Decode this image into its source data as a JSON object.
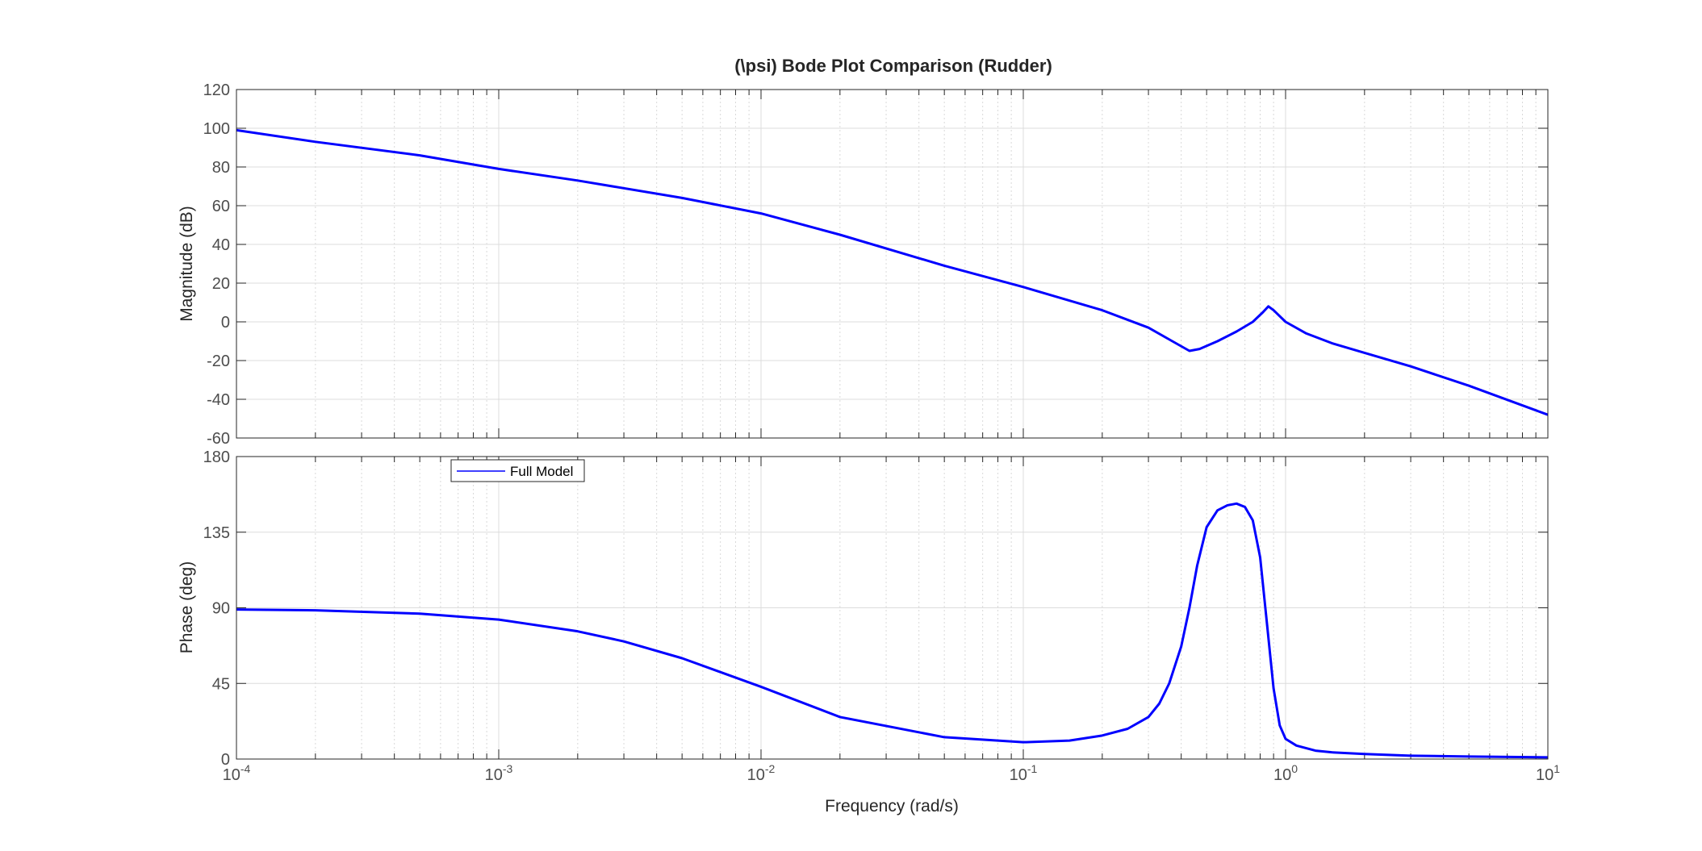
{
  "chart_data": {
    "type": "line",
    "title": "(\\psi) Bode Plot Comparison (Rudder)",
    "xlabel": "Frequency  (rad/s)",
    "xscale": "log",
    "xlim": [
      0.0001,
      10
    ],
    "x_ticks": [
      {
        "base": "10",
        "exp": "-4",
        "value": 0.0001
      },
      {
        "base": "10",
        "exp": "-3",
        "value": 0.001
      },
      {
        "base": "10",
        "exp": "-2",
        "value": 0.01
      },
      {
        "base": "10",
        "exp": "-1",
        "value": 0.1
      },
      {
        "base": "10",
        "exp": "0",
        "value": 1
      },
      {
        "base": "10",
        "exp": "1",
        "value": 10
      }
    ],
    "grid": true,
    "legend": {
      "placement": "top-left (phase panel)",
      "entries": [
        "Full Model"
      ]
    },
    "series_color": "#0000ff",
    "panels": [
      {
        "name": "magnitude",
        "ylabel": "Magnitude (dB)",
        "ylim": [
          -60,
          120
        ],
        "yticks": [
          120,
          100,
          80,
          60,
          40,
          20,
          0,
          -20,
          -40,
          -60
        ],
        "series": [
          {
            "name": "Full Model",
            "x": [
              0.0001,
              0.0002,
              0.0005,
              0.001,
              0.002,
              0.005,
              0.01,
              0.02,
              0.05,
              0.1,
              0.2,
              0.3,
              0.37,
              0.43,
              0.47,
              0.55,
              0.65,
              0.75,
              0.82,
              0.86,
              0.9,
              1.0,
              1.2,
              1.5,
              2,
              3,
              5,
              10
            ],
            "y": [
              99,
              93,
              86,
              79,
              73,
              64,
              56,
              45,
              29,
              18,
              6,
              -3,
              -10,
              -15,
              -14,
              -10,
              -5,
              0,
              5,
              8,
              6,
              0,
              -6,
              -11,
              -16,
              -23,
              -33,
              -48
            ]
          }
        ]
      },
      {
        "name": "phase",
        "ylabel": "Phase (deg)",
        "ylim": [
          0,
          180
        ],
        "yticks": [
          180,
          135,
          90,
          45,
          0
        ],
        "series": [
          {
            "name": "Full Model",
            "x": [
              0.0001,
              0.0002,
              0.0005,
              0.001,
              0.002,
              0.003,
              0.005,
              0.01,
              0.02,
              0.05,
              0.1,
              0.15,
              0.2,
              0.25,
              0.3,
              0.33,
              0.36,
              0.4,
              0.43,
              0.46,
              0.5,
              0.55,
              0.6,
              0.65,
              0.7,
              0.75,
              0.8,
              0.85,
              0.9,
              0.95,
              1.0,
              1.1,
              1.3,
              1.5,
              2,
              3,
              5,
              10
            ],
            "y": [
              89,
              88.5,
              86.5,
              83,
              76,
              70,
              60,
              43,
              25,
              13,
              10,
              11,
              14,
              18,
              25,
              33,
              45,
              67,
              90,
              115,
              138,
              148,
              151,
              152,
              150,
              142,
              120,
              80,
              42,
              20,
              12,
              8,
              5,
              4,
              3,
              2,
              1.5,
              1
            ]
          }
        ]
      }
    ]
  }
}
